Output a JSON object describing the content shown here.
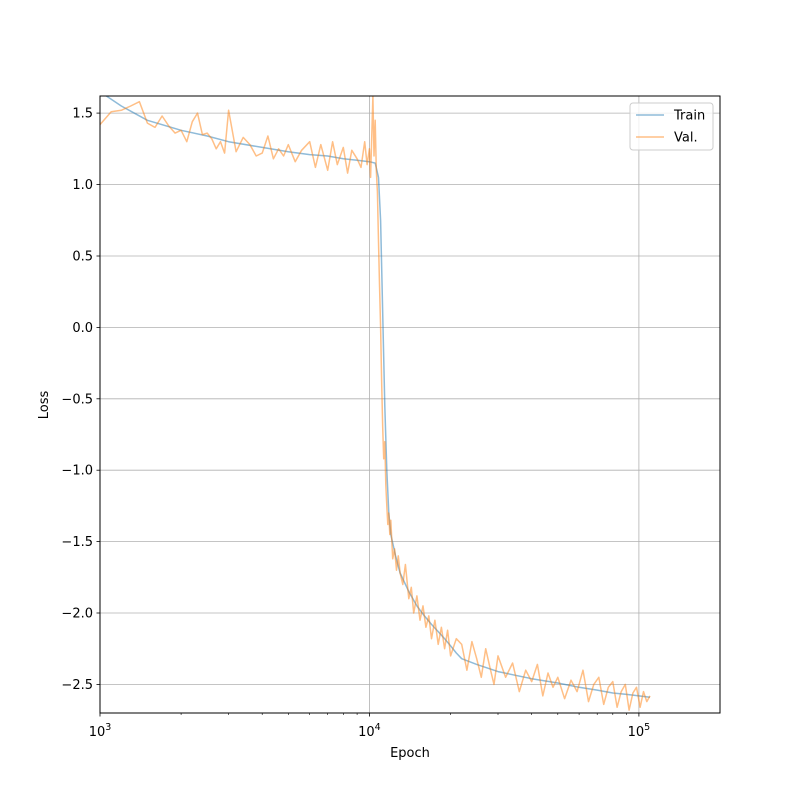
{
  "chart_data": {
    "type": "line",
    "title": "",
    "xlabel": "Epoch",
    "ylabel": "Loss",
    "xscale": "log",
    "xlim": [
      1000,
      200000
    ],
    "ylim": [
      -2.7,
      1.62
    ],
    "grid": true,
    "legend_position": "top-right",
    "x_ticks": [
      {
        "value": 1000,
        "base": "10",
        "exp": "3"
      },
      {
        "value": 10000,
        "base": "10",
        "exp": "4"
      },
      {
        "value": 100000,
        "base": "10",
        "exp": "5"
      }
    ],
    "y_ticks": [
      {
        "value": 1.5,
        "label": "1.5"
      },
      {
        "value": 1.0,
        "label": "1.0"
      },
      {
        "value": 0.5,
        "label": "0.5"
      },
      {
        "value": 0.0,
        "label": "0.0"
      },
      {
        "value": -0.5,
        "label": "−0.5"
      },
      {
        "value": -1.0,
        "label": "−1.0"
      },
      {
        "value": -1.5,
        "label": "−1.5"
      },
      {
        "value": -2.0,
        "label": "−2.0"
      },
      {
        "value": -2.5,
        "label": "−2.5"
      }
    ],
    "series": [
      {
        "name": "Train",
        "color": "#1f77b4",
        "opacity": 0.5,
        "x": [
          1000,
          1200,
          1500,
          2000,
          2500,
          3000,
          4000,
          5000,
          6000,
          7000,
          8000,
          9000,
          10000,
          10500,
          10800,
          11000,
          11200,
          11400,
          11600,
          11800,
          12000,
          12500,
          13000,
          14000,
          15000,
          16000,
          17000,
          18000,
          19000,
          20000,
          21000,
          22000,
          25000,
          30000,
          40000,
          50000,
          60000,
          70000,
          80000,
          90000,
          100000,
          110000
        ],
        "y": [
          1.65,
          1.55,
          1.45,
          1.38,
          1.34,
          1.3,
          1.26,
          1.23,
          1.21,
          1.2,
          1.18,
          1.17,
          1.16,
          1.15,
          1.05,
          0.75,
          0.1,
          -0.55,
          -1.0,
          -1.3,
          -1.45,
          -1.6,
          -1.72,
          -1.85,
          -1.95,
          -2.02,
          -2.08,
          -2.13,
          -2.18,
          -2.23,
          -2.28,
          -2.32,
          -2.36,
          -2.41,
          -2.46,
          -2.49,
          -2.52,
          -2.54,
          -2.56,
          -2.57,
          -2.58,
          -2.59
        ]
      },
      {
        "name": "Val.",
        "color": "#ff7f0e",
        "opacity": 0.5,
        "x": [
          1000,
          1100,
          1200,
          1300,
          1400,
          1500,
          1600,
          1700,
          1800,
          1900,
          2000,
          2100,
          2200,
          2300,
          2400,
          2500,
          2600,
          2700,
          2800,
          2900,
          3000,
          3200,
          3400,
          3600,
          3800,
          4000,
          4200,
          4400,
          4600,
          4800,
          5000,
          5300,
          5600,
          6000,
          6300,
          6600,
          7000,
          7300,
          7600,
          8000,
          8300,
          8600,
          9000,
          9300,
          9600,
          9800,
          10000,
          10100,
          10200,
          10300,
          10400,
          10500,
          10600,
          10700,
          10800,
          10900,
          11000,
          11100,
          11200,
          11300,
          11400,
          11500,
          11600,
          11700,
          11800,
          11900,
          12000,
          12200,
          12400,
          12600,
          12800,
          13000,
          13300,
          13600,
          14000,
          14300,
          14600,
          15000,
          15400,
          15800,
          16200,
          16600,
          17000,
          17500,
          18000,
          18500,
          19000,
          19500,
          20000,
          21000,
          22000,
          23000,
          24000,
          25000,
          26000,
          27000,
          28000,
          29000,
          30000,
          32000,
          34000,
          36000,
          38000,
          40000,
          42000,
          44000,
          46000,
          48000,
          50000,
          53000,
          56000,
          59000,
          62000,
          65000,
          68000,
          71000,
          74000,
          77000,
          80000,
          83000,
          86000,
          89000,
          92000,
          95000,
          98000,
          101000,
          104000,
          107000,
          110000
        ],
        "y": [
          1.42,
          1.51,
          1.52,
          1.55,
          1.58,
          1.43,
          1.4,
          1.48,
          1.41,
          1.36,
          1.38,
          1.3,
          1.44,
          1.5,
          1.35,
          1.36,
          1.32,
          1.25,
          1.3,
          1.22,
          1.52,
          1.23,
          1.33,
          1.28,
          1.2,
          1.22,
          1.34,
          1.18,
          1.25,
          1.2,
          1.28,
          1.16,
          1.24,
          1.3,
          1.12,
          1.28,
          1.1,
          1.3,
          1.14,
          1.26,
          1.08,
          1.24,
          1.18,
          1.12,
          1.3,
          1.14,
          1.25,
          1.05,
          1.35,
          1.62,
          1.2,
          1.45,
          1.1,
          0.95,
          0.6,
          0.3,
          0.0,
          -0.4,
          -0.7,
          -0.92,
          -0.8,
          -1.1,
          -1.25,
          -1.38,
          -1.3,
          -1.45,
          -1.35,
          -1.62,
          -1.55,
          -1.7,
          -1.6,
          -1.72,
          -1.8,
          -1.66,
          -1.9,
          -1.82,
          -2.0,
          -1.88,
          -2.05,
          -1.95,
          -2.1,
          -2.02,
          -2.18,
          -2.05,
          -2.22,
          -2.1,
          -2.25,
          -2.12,
          -2.3,
          -2.18,
          -2.22,
          -2.4,
          -2.2,
          -2.32,
          -2.45,
          -2.25,
          -2.38,
          -2.5,
          -2.3,
          -2.45,
          -2.35,
          -2.55,
          -2.4,
          -2.48,
          -2.36,
          -2.58,
          -2.42,
          -2.52,
          -2.45,
          -2.6,
          -2.47,
          -2.55,
          -2.4,
          -2.62,
          -2.5,
          -2.45,
          -2.64,
          -2.52,
          -2.48,
          -2.66,
          -2.55,
          -2.5,
          -2.68,
          -2.56,
          -2.52,
          -2.66,
          -2.55,
          -2.62,
          -2.58
        ]
      }
    ]
  }
}
